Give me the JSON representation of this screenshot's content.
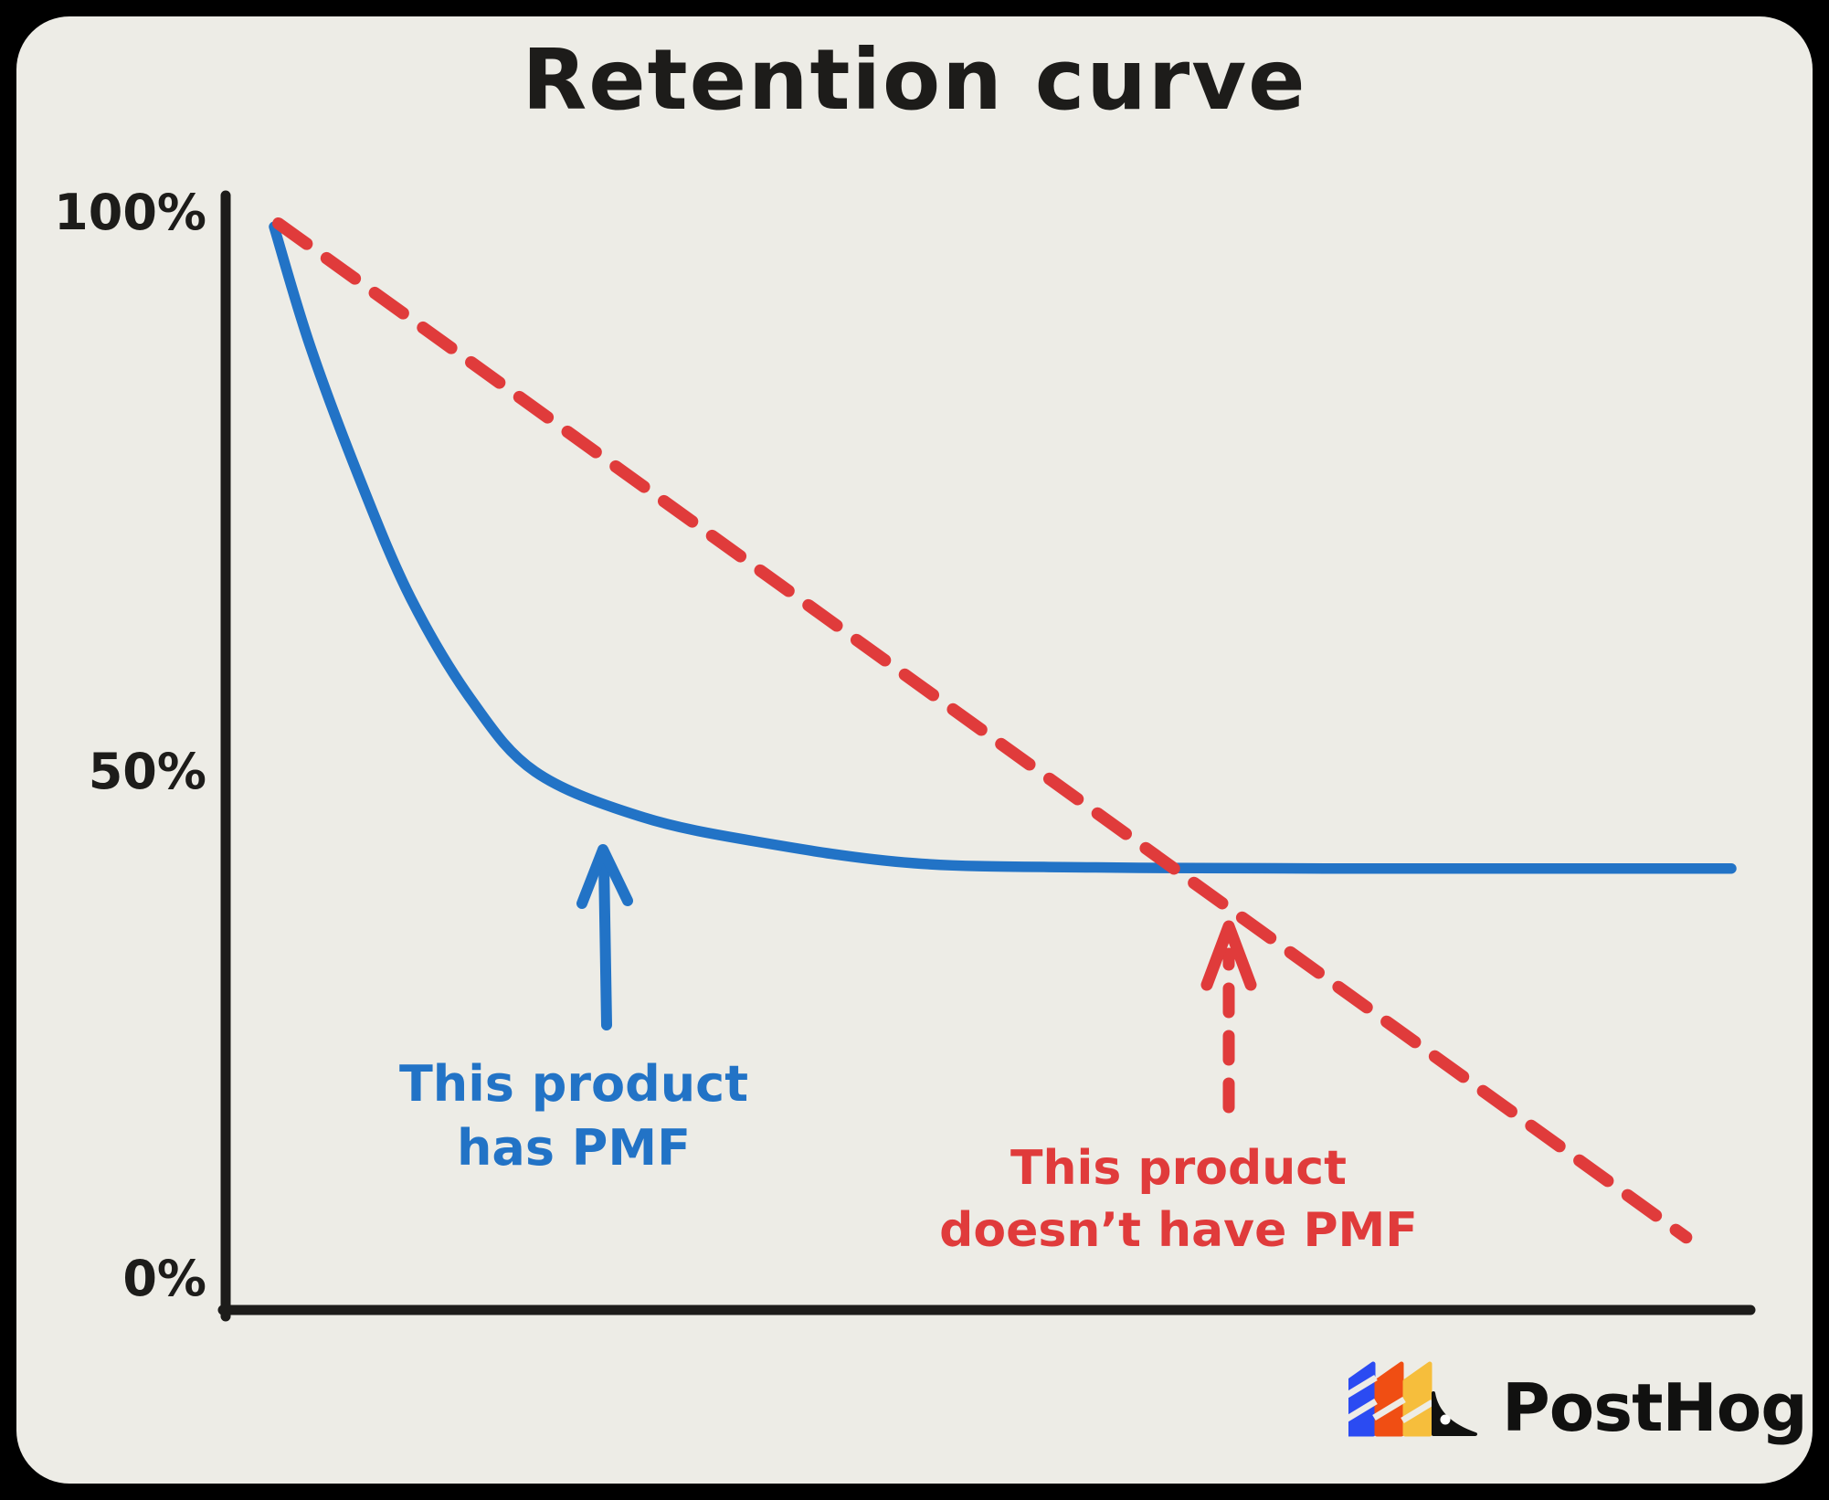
{
  "title": "Retention curve",
  "y_axis": {
    "labels": [
      "100%",
      "50%",
      "0%"
    ]
  },
  "annotations": {
    "has_pmf": {
      "line1": "This product",
      "line2": "has PMF"
    },
    "no_pmf": {
      "line1": "This product",
      "line2": "doesn’t have PMF"
    }
  },
  "brand": {
    "name": "PostHog"
  },
  "colors": {
    "background": "#000000",
    "panel": "#EDECE6",
    "ink": "#1D1C1A",
    "blue": "#2273C6",
    "red": "#E03B3B",
    "logo_blue": "#2B4BF2",
    "logo_orange": "#F04E13",
    "logo_yellow": "#F6BE3C",
    "logo_ink": "#111110",
    "logo_eye": "#FFFFFF"
  },
  "chart_data": {
    "type": "line",
    "title": "Retention curve",
    "xlabel": "",
    "ylabel": "",
    "x_units": "percent-of-axis-width",
    "ylim": [
      0,
      100
    ],
    "yticks": [
      "100%",
      "50%",
      "0%"
    ],
    "grid": false,
    "legend": "inline-annotations",
    "series": [
      {
        "name": "This product has PMF",
        "color": "#2273C6",
        "line_style": "solid",
        "points": [
          [
            0,
            98.7
          ],
          [
            2.5,
            87.4
          ],
          [
            6,
            74.6
          ],
          [
            9.4,
            63.8
          ],
          [
            13.5,
            54.4
          ],
          [
            17.9,
            47.6
          ],
          [
            25.1,
            43.4
          ],
          [
            33.2,
            41.0
          ],
          [
            43.9,
            39.0
          ],
          [
            56.4,
            38.6
          ],
          [
            72.1,
            38.5
          ],
          [
            100,
            38.5
          ]
        ]
      },
      {
        "name": "This product doesn’t have PMF",
        "color": "#E03B3B",
        "line_style": "dashed",
        "points": [
          [
            0.3,
            99.0
          ],
          [
            96.9,
            3.9
          ]
        ]
      }
    ]
  }
}
